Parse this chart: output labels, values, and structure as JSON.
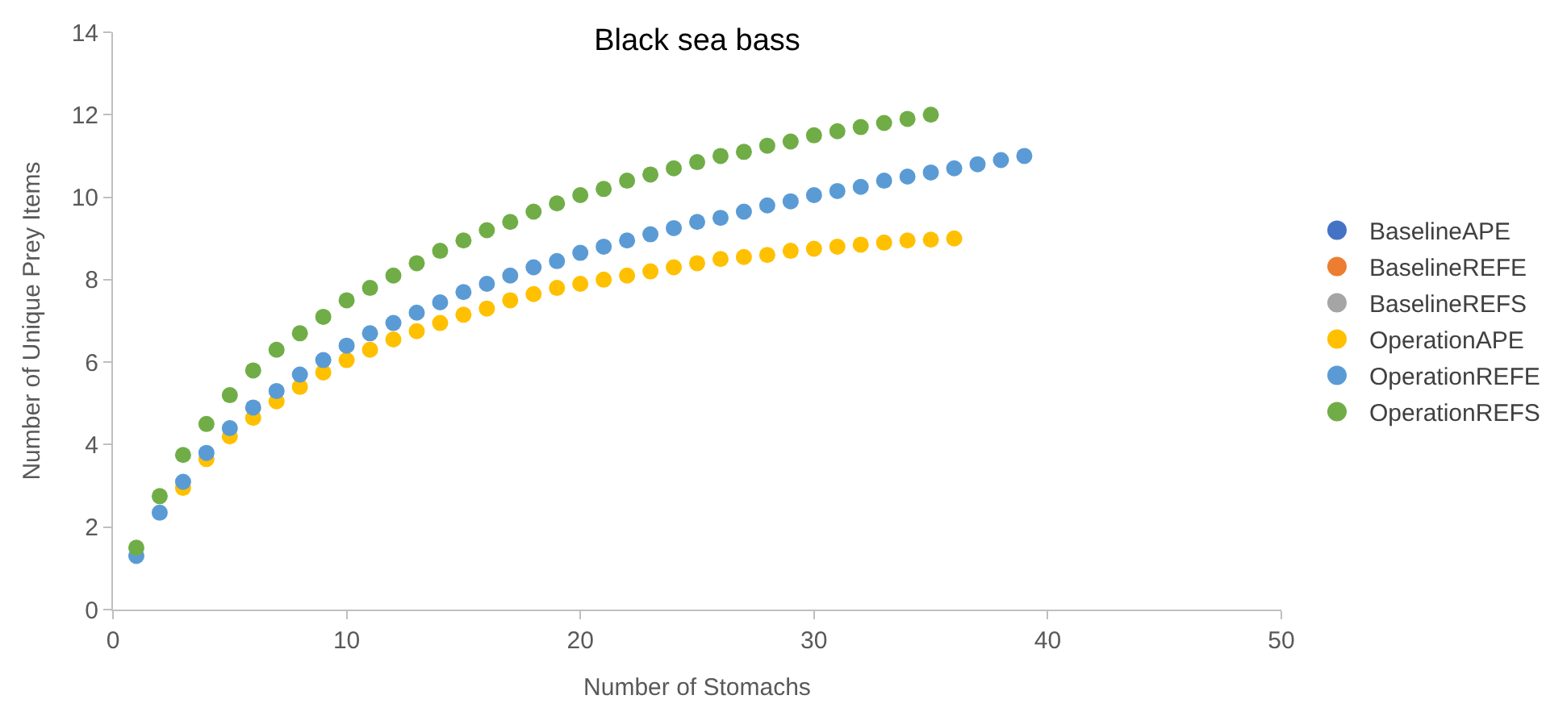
{
  "chart_data": {
    "type": "scatter",
    "title": "Black sea bass",
    "xlabel": "Number of Stomachs",
    "ylabel": "Number of Unique Prey Items",
    "xlim": [
      0,
      50
    ],
    "xticks": [
      0,
      10,
      20,
      30,
      40,
      50
    ],
    "ylim": [
      0,
      14
    ],
    "yticks": [
      0,
      2,
      4,
      6,
      8,
      10,
      12,
      14
    ],
    "grid": false,
    "legend": "right",
    "marker": "circle",
    "series": [
      {
        "name": "BaselineAPE",
        "color": "#4472c4"
      },
      {
        "name": "BaselineREFE",
        "color": "#ed7d31"
      },
      {
        "name": "BaselineREFS",
        "color": "#a5a5a5"
      },
      {
        "name": "OperationAPE",
        "color": "#ffc000",
        "x": [
          3,
          4,
          5,
          6,
          7,
          8,
          9,
          10,
          11,
          12,
          13,
          14,
          15,
          16,
          17,
          18,
          19,
          20,
          21,
          22,
          23,
          24,
          25,
          26,
          27,
          28,
          29,
          30,
          31,
          32,
          33,
          34,
          35,
          36
        ],
        "values": [
          2.95,
          3.65,
          4.2,
          4.65,
          5.05,
          5.4,
          5.75,
          6.05,
          6.3,
          6.55,
          6.75,
          6.95,
          7.15,
          7.3,
          7.5,
          7.65,
          7.8,
          7.9,
          8.0,
          8.1,
          8.2,
          8.3,
          8.4,
          8.5,
          8.55,
          8.6,
          8.7,
          8.75,
          8.8,
          8.85,
          8.9,
          8.95,
          8.97,
          9.0
        ]
      },
      {
        "name": "OperationREFE",
        "color": "#5b9bd5",
        "x": [
          1,
          2,
          3,
          4,
          5,
          6,
          7,
          8,
          9,
          10,
          11,
          12,
          13,
          14,
          15,
          16,
          17,
          18,
          19,
          20,
          21,
          22,
          23,
          24,
          25,
          26,
          27,
          28,
          29,
          30,
          31,
          32,
          33,
          34,
          35,
          36,
          37,
          38,
          39
        ],
        "values": [
          1.3,
          2.35,
          3.1,
          3.8,
          4.4,
          4.9,
          5.3,
          5.7,
          6.05,
          6.4,
          6.7,
          6.95,
          7.2,
          7.45,
          7.7,
          7.9,
          8.1,
          8.3,
          8.45,
          8.65,
          8.8,
          8.95,
          9.1,
          9.25,
          9.4,
          9.5,
          9.65,
          9.8,
          9.9,
          10.05,
          10.15,
          10.25,
          10.4,
          10.5,
          10.6,
          10.7,
          10.8,
          10.9,
          11.0
        ]
      },
      {
        "name": "OperationREFS",
        "color": "#70ad47",
        "x": [
          1,
          2,
          3,
          4,
          5,
          6,
          7,
          8,
          9,
          10,
          11,
          12,
          13,
          14,
          15,
          16,
          17,
          18,
          19,
          20,
          21,
          22,
          23,
          24,
          25,
          26,
          27,
          28,
          29,
          30,
          31,
          32,
          33,
          34,
          35
        ],
        "values": [
          1.5,
          2.75,
          3.75,
          4.5,
          5.2,
          5.8,
          6.3,
          6.7,
          7.1,
          7.5,
          7.8,
          8.1,
          8.4,
          8.7,
          8.95,
          9.2,
          9.4,
          9.65,
          9.85,
          10.05,
          10.2,
          10.4,
          10.55,
          10.7,
          10.85,
          11.0,
          11.1,
          11.25,
          11.35,
          11.5,
          11.6,
          11.7,
          11.8,
          11.9,
          12.0
        ]
      }
    ]
  }
}
